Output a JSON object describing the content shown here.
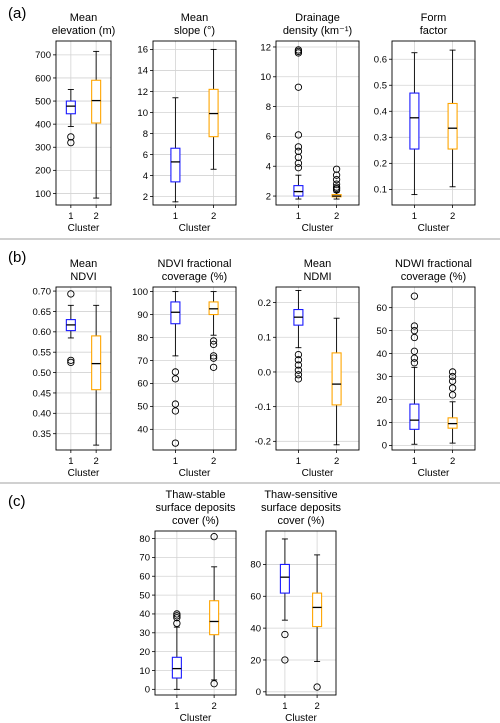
{
  "panel_labels": [
    "(a)",
    "(b)",
    "(c)"
  ],
  "colors": {
    "cluster1": "#1a1aff",
    "cluster2": "#ffa500",
    "axis": "#000000",
    "grid": "#d3d3d3",
    "separator": "#b4b4b4"
  },
  "chart_data": [
    {
      "type": "box",
      "panel": "(a)",
      "title": [
        "Mean",
        "elevation (m)"
      ],
      "xlabel": "Cluster",
      "ylabel": "",
      "categories": [
        "1",
        "2"
      ],
      "ylim": [
        50,
        760
      ],
      "yticks": [
        100,
        200,
        300,
        400,
        500,
        600,
        700
      ],
      "grid": true,
      "boxes": [
        {
          "name": "1",
          "whisker_low": 390,
          "q1": 445,
          "median": 478,
          "q3": 500,
          "whisker_high": 550,
          "fliers": [
            345,
            320
          ]
        },
        {
          "name": "2",
          "whisker_low": 80,
          "q1": 405,
          "median": 502,
          "q3": 590,
          "whisker_high": 715,
          "fliers": []
        }
      ]
    },
    {
      "type": "box",
      "panel": "(a)",
      "title": [
        "Mean",
        "slope (°)"
      ],
      "xlabel": "Cluster",
      "ylabel": "",
      "categories": [
        "1",
        "2"
      ],
      "ylim": [
        1.2,
        16.8
      ],
      "yticks": [
        2,
        4,
        6,
        8,
        10,
        12,
        14,
        16
      ],
      "grid": true,
      "boxes": [
        {
          "name": "1",
          "whisker_low": 1.5,
          "q1": 3.4,
          "median": 5.3,
          "q3": 6.6,
          "whisker_high": 11.4,
          "fliers": []
        },
        {
          "name": "2",
          "whisker_low": 4.6,
          "q1": 7.7,
          "median": 9.9,
          "q3": 12.2,
          "whisker_high": 16.0,
          "fliers": []
        }
      ]
    },
    {
      "type": "box",
      "panel": "(a)",
      "title": [
        "Drainage",
        "density (km⁻¹)"
      ],
      "xlabel": "Cluster",
      "ylabel": "",
      "categories": [
        "1",
        "2"
      ],
      "ylim": [
        1.4,
        12.4
      ],
      "yticks": [
        2,
        4,
        6,
        8,
        10,
        12
      ],
      "grid": true,
      "boxes": [
        {
          "name": "1",
          "whisker_low": 1.8,
          "q1": 2.0,
          "median": 2.3,
          "q3": 2.7,
          "whisker_high": 3.4,
          "fliers": [
            3.9,
            4.2,
            4.6,
            5.0,
            5.3,
            6.1,
            9.3,
            11.6,
            11.7,
            11.8
          ]
        },
        {
          "name": "2",
          "whisker_low": 1.8,
          "q1": 1.95,
          "median": 2.0,
          "q3": 2.1,
          "whisker_high": 2.25,
          "fliers": [
            2.4,
            2.5,
            2.6,
            2.8,
            3.1,
            3.4,
            3.8
          ]
        }
      ]
    },
    {
      "type": "box",
      "panel": "(a)",
      "title": [
        "Form",
        "factor"
      ],
      "xlabel": "Cluster",
      "ylabel": "",
      "categories": [
        "1",
        "2"
      ],
      "ylim": [
        0.04,
        0.67
      ],
      "yticks": [
        0.1,
        0.2,
        0.3,
        0.4,
        0.5,
        0.6
      ],
      "grid": true,
      "boxes": [
        {
          "name": "1",
          "whisker_low": 0.08,
          "q1": 0.255,
          "median": 0.375,
          "q3": 0.47,
          "whisker_high": 0.625,
          "fliers": []
        },
        {
          "name": "2",
          "whisker_low": 0.11,
          "q1": 0.255,
          "median": 0.335,
          "q3": 0.43,
          "whisker_high": 0.635,
          "fliers": []
        }
      ]
    },
    {
      "type": "box",
      "panel": "(b)",
      "title": [
        "Mean",
        "NDVI"
      ],
      "xlabel": "Cluster",
      "ylabel": "",
      "categories": [
        "1",
        "2"
      ],
      "ylim": [
        0.31,
        0.71
      ],
      "yticks": [
        0.35,
        0.4,
        0.45,
        0.5,
        0.55,
        0.6,
        0.65,
        0.7
      ],
      "grid": true,
      "boxes": [
        {
          "name": "1",
          "whisker_low": 0.585,
          "q1": 0.603,
          "median": 0.617,
          "q3": 0.63,
          "whisker_high": 0.665,
          "fliers": [
            0.693,
            0.53,
            0.525
          ]
        },
        {
          "name": "2",
          "whisker_low": 0.322,
          "q1": 0.458,
          "median": 0.522,
          "q3": 0.59,
          "whisker_high": 0.665,
          "fliers": []
        }
      ]
    },
    {
      "type": "box",
      "panel": "(b)",
      "title": [
        "NDVI fractional",
        "coverage (%)"
      ],
      "xlabel": "Cluster",
      "ylabel": "",
      "categories": [
        "1",
        "2"
      ],
      "ylim": [
        31,
        102
      ],
      "yticks": [
        40,
        50,
        60,
        70,
        80,
        90,
        100
      ],
      "grid": true,
      "boxes": [
        {
          "name": "1",
          "whisker_low": 72,
          "q1": 86,
          "median": 91,
          "q3": 95.5,
          "whisker_high": 100,
          "fliers": [
            65,
            62,
            51,
            48,
            34
          ]
        },
        {
          "name": "2",
          "whisker_low": 81,
          "q1": 90,
          "median": 92.5,
          "q3": 95.5,
          "whisker_high": 100,
          "fliers": [
            78.5,
            77,
            72,
            71,
            67
          ]
        }
      ]
    },
    {
      "type": "box",
      "panel": "(b)",
      "title": [
        "Mean",
        "NDMI"
      ],
      "xlabel": "Cluster",
      "ylabel": "",
      "categories": [
        "1",
        "2"
      ],
      "ylim": [
        -0.225,
        0.245
      ],
      "yticks": [
        -0.2,
        -0.1,
        0.0,
        0.1,
        0.2
      ],
      "grid": true,
      "boxes": [
        {
          "name": "1",
          "whisker_low": 0.07,
          "q1": 0.135,
          "median": 0.158,
          "q3": 0.18,
          "whisker_high": 0.235,
          "fliers": [
            0.05,
            0.035,
            0.02,
            0.005,
            -0.008,
            -0.02
          ]
        },
        {
          "name": "2",
          "whisker_low": -0.21,
          "q1": -0.095,
          "median": -0.035,
          "q3": 0.055,
          "whisker_high": 0.155,
          "fliers": []
        }
      ]
    },
    {
      "type": "box",
      "panel": "(b)",
      "title": [
        "NDWI fractional",
        "coverage (%)"
      ],
      "xlabel": "Cluster",
      "ylabel": "",
      "categories": [
        "1",
        "2"
      ],
      "ylim": [
        -2,
        69
      ],
      "yticks": [
        0,
        10,
        20,
        30,
        40,
        50,
        60
      ],
      "grid": true,
      "boxes": [
        {
          "name": "1",
          "whisker_low": 0.5,
          "q1": 7,
          "median": 11,
          "q3": 18,
          "whisker_high": 34,
          "fliers": [
            36,
            38,
            41,
            47,
            50,
            52,
            65
          ]
        },
        {
          "name": "2",
          "whisker_low": 1,
          "q1": 7.5,
          "median": 9.5,
          "q3": 12,
          "whisker_high": 19,
          "fliers": [
            22,
            25,
            28,
            30,
            32
          ]
        }
      ]
    },
    {
      "type": "box",
      "panel": "(c)",
      "title": [
        "Thaw-stable",
        "surface deposits",
        "cover (%)"
      ],
      "xlabel": "Cluster",
      "ylabel": "",
      "categories": [
        "1",
        "2"
      ],
      "ylim": [
        -3,
        84
      ],
      "yticks": [
        0,
        10,
        20,
        30,
        40,
        50,
        60,
        70,
        80
      ],
      "grid": true,
      "boxes": [
        {
          "name": "1",
          "whisker_low": 0,
          "q1": 6,
          "median": 11,
          "q3": 17,
          "whisker_high": 33,
          "fliers": [
            35,
            38,
            39,
            40
          ]
        },
        {
          "name": "2",
          "whisker_low": 5,
          "q1": 29,
          "median": 36,
          "q3": 47,
          "whisker_high": 65,
          "fliers": [
            3,
            81
          ]
        }
      ]
    },
    {
      "type": "box",
      "panel": "(c)",
      "title": [
        "Thaw-sensitive",
        "surface deposits",
        "cover (%)"
      ],
      "xlabel": "Cluster",
      "ylabel": "",
      "categories": [
        "1",
        "2"
      ],
      "ylim": [
        -2,
        101
      ],
      "yticks": [
        0,
        20,
        40,
        60,
        80
      ],
      "grid": true,
      "boxes": [
        {
          "name": "1",
          "whisker_low": 45,
          "q1": 62,
          "median": 72,
          "q3": 80,
          "whisker_high": 96,
          "fliers": [
            36,
            20
          ]
        },
        {
          "name": "2",
          "whisker_low": 19,
          "q1": 41,
          "median": 53,
          "q3": 62,
          "whisker_high": 86,
          "fliers": [
            3
          ]
        }
      ]
    }
  ]
}
